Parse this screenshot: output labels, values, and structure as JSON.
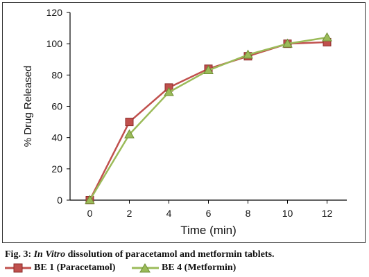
{
  "caption": {
    "prefix": "Fig. 3:",
    "italic": "In Vitro",
    "rest": "dissolution of paracetamol and metformin tablets."
  },
  "legend": {
    "placement": "below-chart",
    "items": [
      {
        "label": "BE 1 (Paracetamol)",
        "marker": "square",
        "color": "#c0504d"
      },
      {
        "label": "BE 4 (Metformin)",
        "marker": "triangle",
        "color": "#9bbb59"
      }
    ]
  },
  "chart_data": {
    "type": "line",
    "title": "",
    "xlabel": "Time (min)",
    "ylabel": "% Drug Released",
    "x": [
      0,
      2,
      4,
      6,
      8,
      10,
      12
    ],
    "xlim": [
      -1,
      13
    ],
    "ylim": [
      0,
      120
    ],
    "xticks": [
      0,
      2,
      4,
      6,
      8,
      10,
      12
    ],
    "yticks": [
      0,
      20,
      40,
      60,
      80,
      100,
      120
    ],
    "grid": false,
    "series": [
      {
        "name": "BE 1 (Paracetamol)",
        "marker": "square",
        "color": "#c0504d",
        "values": [
          0,
          50,
          72,
          84,
          92,
          100,
          101
        ]
      },
      {
        "name": "BE 4 (Metformin)",
        "marker": "triangle",
        "color": "#9bbb59",
        "values": [
          0,
          42,
          69,
          83,
          93,
          100,
          104
        ]
      }
    ]
  }
}
